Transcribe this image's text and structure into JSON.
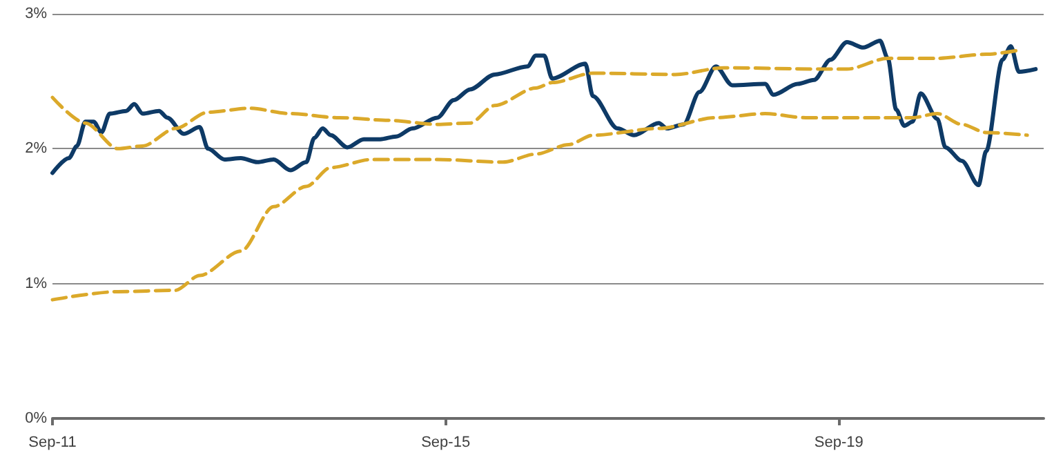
{
  "chart_data": {
    "type": "line",
    "xlim": [
      "2011-09",
      "2021-10"
    ],
    "xticks": [
      {
        "value": "2011-09",
        "label": "Sep-11"
      },
      {
        "value": "2015-09",
        "label": "Sep-15"
      },
      {
        "value": "2019-09",
        "label": "Sep-19"
      }
    ],
    "ylim": [
      0,
      3
    ],
    "yticks": [
      {
        "value": 0,
        "label": "0%"
      },
      {
        "value": 1,
        "label": "1%"
      },
      {
        "value": 2,
        "label": "2%"
      },
      {
        "value": 3,
        "label": "3%"
      }
    ],
    "grid": "y",
    "marker": "none",
    "series": [
      {
        "color": "#0e3a66",
        "line_style": "solid",
        "x": [
          "2011-09",
          "2011-11",
          "2011-12",
          "2012-01",
          "2012-02",
          "2012-03",
          "2012-04",
          "2012-06",
          "2012-07",
          "2012-08",
          "2012-10",
          "2012-11",
          "2013-01",
          "2013-03",
          "2013-04",
          "2013-06",
          "2013-08",
          "2013-10",
          "2013-12",
          "2014-02",
          "2014-04",
          "2014-05",
          "2014-06",
          "2014-07",
          "2014-09",
          "2014-11",
          "2015-01",
          "2015-03",
          "2015-05",
          "2015-08",
          "2015-10",
          "2015-12",
          "2016-03",
          "2016-07",
          "2016-08",
          "2016-09",
          "2016-10",
          "2017-02",
          "2017-03",
          "2017-06",
          "2017-08",
          "2017-11",
          "2017-12",
          "2018-02",
          "2018-04",
          "2018-06",
          "2018-08",
          "2018-12",
          "2019-01",
          "2019-04",
          "2019-06",
          "2019-08",
          "2019-10",
          "2019-12",
          "2020-02",
          "2020-03",
          "2020-04",
          "2020-05",
          "2020-06",
          "2020-07",
          "2020-09",
          "2020-10",
          "2020-12",
          "2021-02",
          "2021-03",
          "2021-05",
          "2021-06",
          "2021-07",
          "2021-09"
        ],
        "values": [
          1.82,
          1.93,
          2.02,
          2.2,
          2.2,
          2.12,
          2.26,
          2.28,
          2.33,
          2.26,
          2.28,
          2.23,
          2.11,
          2.16,
          2.0,
          1.92,
          1.93,
          1.9,
          1.92,
          1.84,
          1.9,
          2.08,
          2.15,
          2.1,
          2.01,
          2.07,
          2.07,
          2.09,
          2.15,
          2.23,
          2.36,
          2.44,
          2.55,
          2.61,
          2.69,
          2.69,
          2.52,
          2.63,
          2.39,
          2.15,
          2.1,
          2.19,
          2.15,
          2.18,
          2.42,
          2.61,
          2.47,
          2.48,
          2.4,
          2.48,
          2.51,
          2.66,
          2.79,
          2.75,
          2.8,
          2.67,
          2.29,
          2.17,
          2.2,
          2.41,
          2.22,
          2.01,
          1.91,
          1.73,
          1.98,
          2.66,
          2.76,
          2.57,
          2.59
        ]
      },
      {
        "color": "#dba92a",
        "line_style": "dashed",
        "x": [
          "2011-09",
          "2012-01",
          "2012-05",
          "2012-08",
          "2012-12",
          "2013-04",
          "2013-09",
          "2014-02",
          "2014-08",
          "2015-02",
          "2015-08",
          "2015-12",
          "2016-03",
          "2016-08",
          "2016-10",
          "2017-03",
          "2018-01",
          "2018-07",
          "2019-07",
          "2019-10",
          "2020-03",
          "2020-09",
          "2021-03",
          "2021-07"
        ],
        "values": [
          2.38,
          2.19,
          2.0,
          2.02,
          2.15,
          2.27,
          2.3,
          2.26,
          2.23,
          2.21,
          2.18,
          2.19,
          2.32,
          2.45,
          2.49,
          2.56,
          2.55,
          2.6,
          2.59,
          2.59,
          2.67,
          2.67,
          2.7,
          2.73
        ]
      },
      {
        "color": "#dba92a",
        "line_style": "dashed",
        "x": [
          "2011-09",
          "2012-05",
          "2012-12",
          "2013-03",
          "2013-08",
          "2013-12",
          "2014-04",
          "2014-07",
          "2014-12",
          "2015-08",
          "2016-04",
          "2016-08",
          "2016-12",
          "2017-03",
          "2017-11",
          "2018-06",
          "2018-12",
          "2019-05",
          "2020-06",
          "2020-09",
          "2020-12",
          "2021-03",
          "2021-08"
        ],
        "values": [
          0.88,
          0.94,
          0.95,
          1.06,
          1.24,
          1.57,
          1.72,
          1.86,
          1.92,
          1.92,
          1.9,
          1.96,
          2.03,
          2.1,
          2.15,
          2.23,
          2.26,
          2.23,
          2.23,
          2.26,
          2.18,
          2.12,
          2.1
        ]
      }
    ]
  }
}
